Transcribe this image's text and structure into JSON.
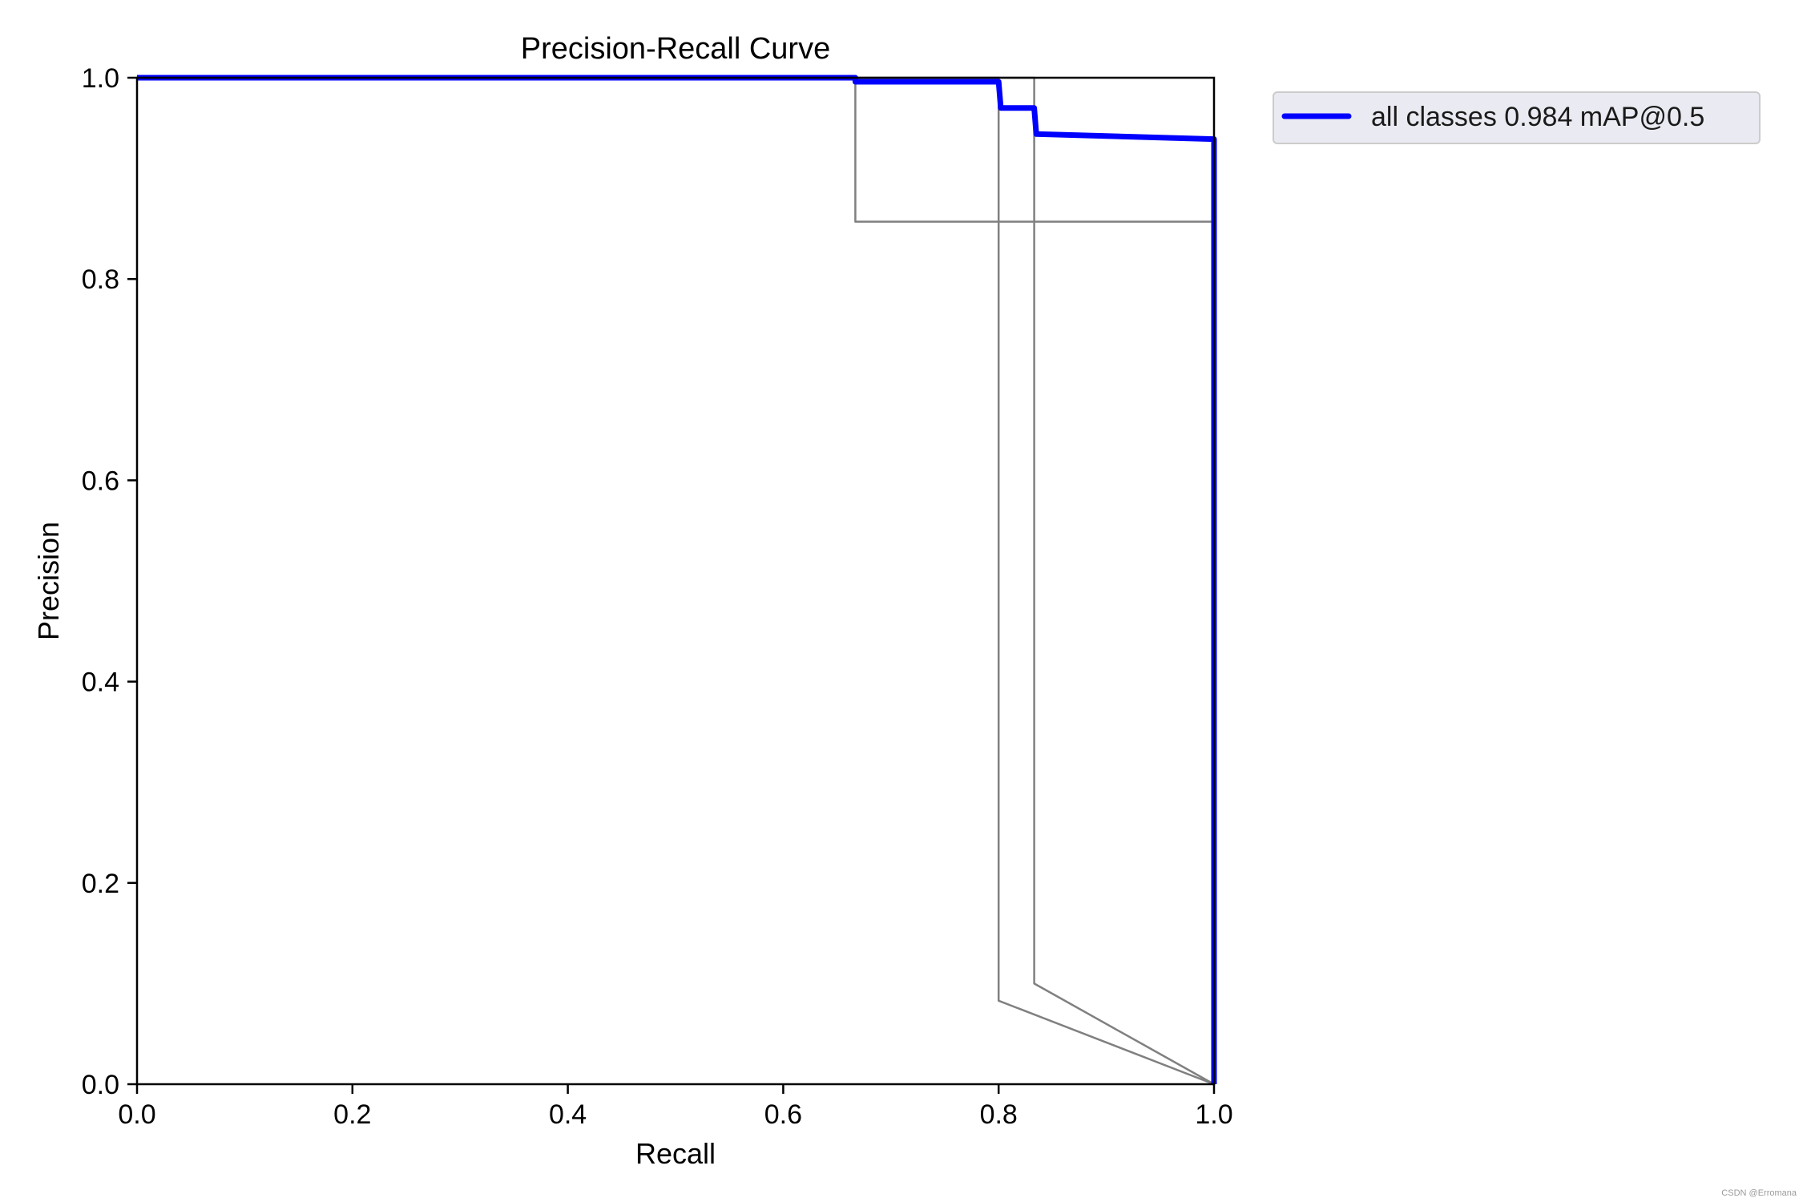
{
  "chart_data": {
    "type": "line",
    "title": "Precision-Recall Curve",
    "xlabel": "Recall",
    "ylabel": "Precision",
    "xlim": [
      0,
      1
    ],
    "ylim": [
      0,
      1
    ],
    "xticks": [
      "0.0",
      "0.2",
      "0.4",
      "0.6",
      "0.8",
      "1.0"
    ],
    "yticks": [
      "0.0",
      "0.2",
      "0.4",
      "0.6",
      "0.8",
      "1.0"
    ],
    "grid": false,
    "legend_position": "outside-top-right",
    "series": [
      {
        "name": "all classes 0.984 mAP@0.5",
        "color": "#0000ff",
        "in_legend": true,
        "x": [
          0.0,
          0.667,
          0.667,
          0.8,
          0.802,
          0.833,
          0.835,
          1.0,
          1.0
        ],
        "y": [
          1.0,
          1.0,
          0.996,
          0.996,
          0.97,
          0.97,
          0.944,
          0.939,
          0.0
        ]
      },
      {
        "name": "",
        "color": "#808080",
        "in_legend": false,
        "x": [
          0.0,
          0.667,
          0.667,
          0.999,
          0.999,
          1.0
        ],
        "y": [
          1.0,
          1.0,
          0.857,
          0.857,
          0.0,
          0.0
        ]
      },
      {
        "name": "",
        "color": "#808080",
        "in_legend": false,
        "x": [
          0.0,
          0.8,
          0.8,
          1.0
        ],
        "y": [
          1.0,
          1.0,
          0.083,
          0.0
        ]
      },
      {
        "name": "",
        "color": "#808080",
        "in_legend": false,
        "x": [
          0.0,
          0.833,
          0.833,
          1.0
        ],
        "y": [
          1.0,
          1.0,
          0.1,
          0.0
        ]
      }
    ]
  },
  "watermark": "CSDN @Erromana"
}
